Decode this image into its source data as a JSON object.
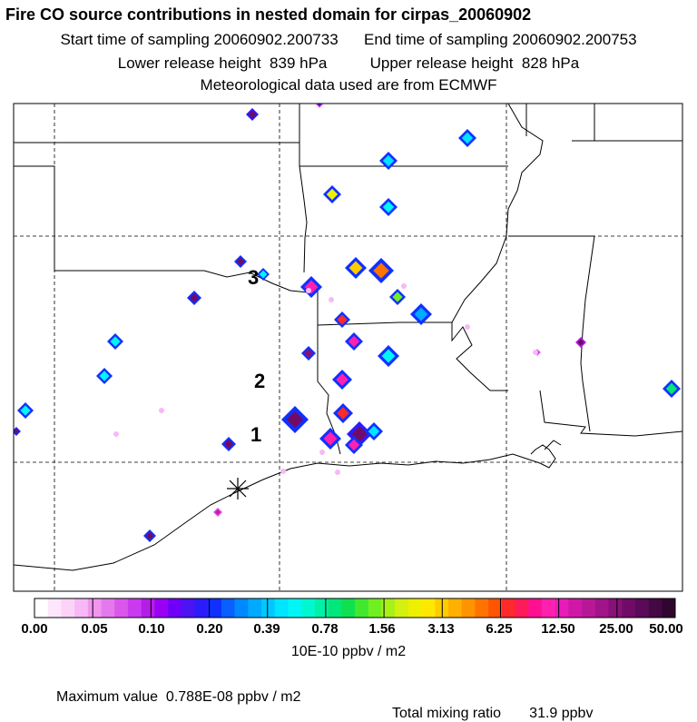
{
  "header": {
    "title": "Fire CO source contributions in nested domain for cirpas_20060902",
    "start_label": "Start time of sampling 20060902.200733",
    "end_label": "End time of sampling 20060902.200753",
    "lower_label": "Lower release height  839 hPa",
    "upper_label": "Upper release height  828 hPa",
    "met_label": "Meteorological data used are from ECMWF"
  },
  "map": {
    "markers": [
      {
        "label": "1"
      },
      {
        "label": "2"
      },
      {
        "label": "3"
      }
    ],
    "release_symbol": "asterisk"
  },
  "colorbar": {
    "ticks": [
      "0.00",
      "0.05",
      "0.10",
      "0.20",
      "0.39",
      "0.78",
      "1.56",
      "3.13",
      "6.25",
      "12.50",
      "25.00",
      "50.00"
    ],
    "colors": [
      "#ffffff",
      "#fde6fb",
      "#fbd3f8",
      "#f7b9f5",
      "#f195ef",
      "#e478ec",
      "#d957ea",
      "#c93af0",
      "#b31ee6",
      "#9a00f4",
      "#6f00f7",
      "#4b12f2",
      "#2b1cfa",
      "#1030ff",
      "#0a5fff",
      "#0088ff",
      "#00aaff",
      "#00c8ff",
      "#00e4ff",
      "#00f6f4",
      "#00f7d0",
      "#00f0a6",
      "#00e87a",
      "#10e050",
      "#40e830",
      "#70f020",
      "#a8f018",
      "#d4f010",
      "#eef000",
      "#ffe800",
      "#ffcc00",
      "#ffb000",
      "#ff9400",
      "#ff7400",
      "#ff5400",
      "#ff2a2a",
      "#ff1a5a",
      "#ff1090",
      "#ff20b0",
      "#e81cb8",
      "#d018a8",
      "#b81898",
      "#a01488",
      "#881078",
      "#700c68",
      "#5a0a58",
      "#440844",
      "#300630"
    ],
    "units": "10E-10 ppbv / m2"
  },
  "footer": {
    "max_value": "Maximum value  0.788E-08 ppbv / m2",
    "total_mixing": "Total mixing ratio       31.9 ppbv"
  }
}
